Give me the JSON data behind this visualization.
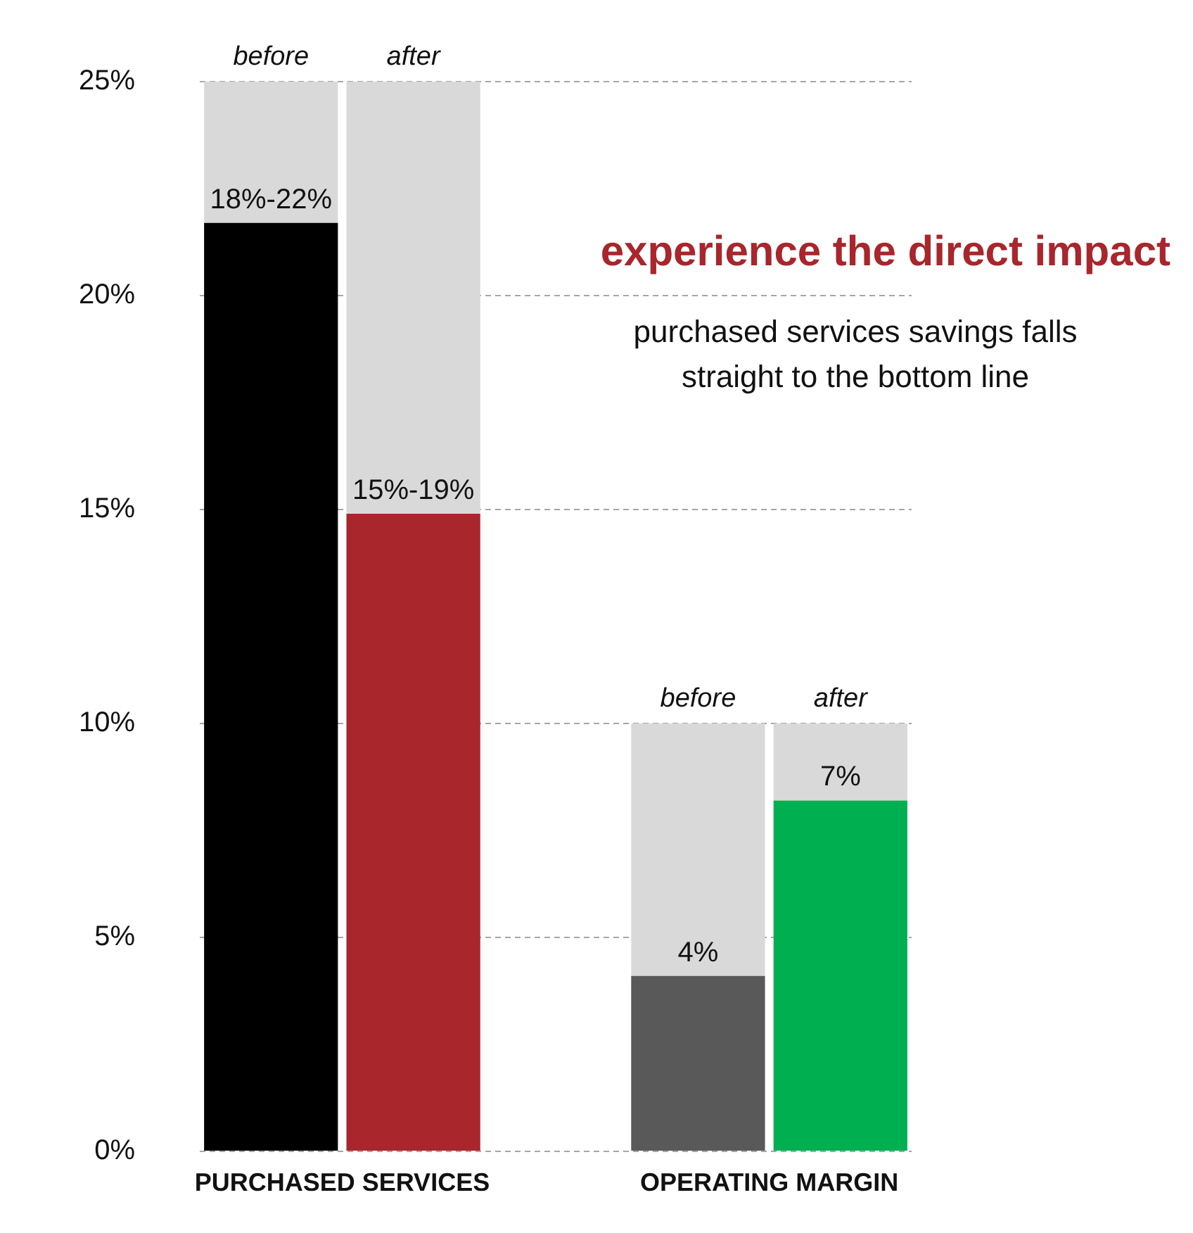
{
  "chart_data": {
    "type": "bar",
    "title": "experience the direct impact",
    "subtitle": "purchased services savings falls straight to the bottom line",
    "categories": [
      "before",
      "after",
      null,
      "before",
      "after"
    ],
    "stacked": true,
    "series": [
      {
        "colors": [
          "#000000",
          "#a8262c",
          "#000000",
          "#595959",
          "#00b050"
        ],
        "values": [
          21.7,
          14.9,
          null,
          4.1,
          8.2
        ]
      },
      {
        "color": "#d9d9d9",
        "values": [
          3.3,
          10.1,
          null,
          5.9,
          1.8
        ]
      }
    ],
    "annotations": [
      "PURCHASED SERVICES",
      "OPERATING MARGIN",
      "18%-22%",
      "15%-19%",
      "4%",
      "7%"
    ],
    "ylim": [
      0,
      25
    ],
    "yticks": [
      {
        "value": 0,
        "label": "0%"
      },
      {
        "value": 5,
        "label": "5%"
      },
      {
        "value": 10,
        "label": "10%"
      },
      {
        "value": 15,
        "label": "15%"
      },
      {
        "value": 20,
        "label": "20%"
      },
      {
        "value": 25,
        "label": "25%"
      }
    ],
    "grid": "y",
    "legend": false
  }
}
